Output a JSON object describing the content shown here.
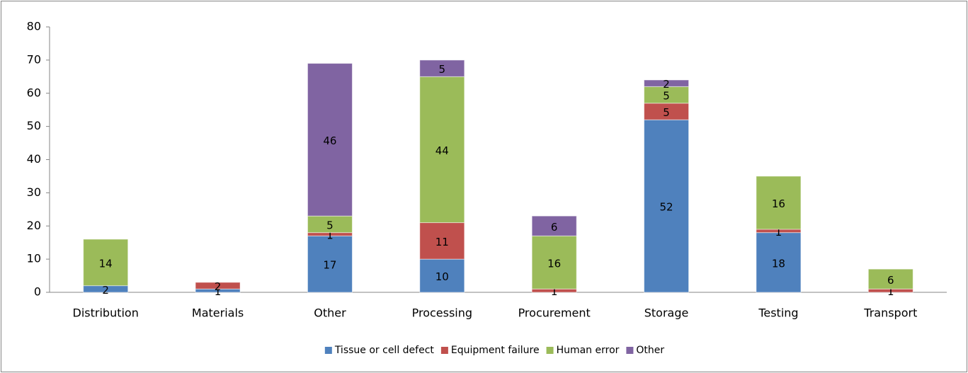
{
  "chart_data": {
    "type": "bar",
    "stacked": true,
    "categories": [
      "Distribution",
      "Materials",
      "Other",
      "Processing",
      "Procurement",
      "Storage",
      "Testing",
      "Transport"
    ],
    "series": [
      {
        "name": "Tissue or cell defect",
        "color": "#4f81bd",
        "values": [
          2,
          1,
          17,
          10,
          null,
          52,
          18,
          null
        ]
      },
      {
        "name": "Equipment failure",
        "color": "#c0504d",
        "values": [
          null,
          2,
          1,
          11,
          1,
          5,
          1,
          1
        ]
      },
      {
        "name": "Human error",
        "color": "#9bbb59",
        "values": [
          14,
          null,
          5,
          44,
          16,
          5,
          16,
          6
        ]
      },
      {
        "name": "Other",
        "color": "#8064a2",
        "values": [
          null,
          null,
          46,
          5,
          6,
          2,
          null,
          null
        ]
      }
    ],
    "ylim": [
      0,
      80
    ],
    "yticks": [
      0,
      10,
      20,
      30,
      40,
      50,
      60,
      70,
      80
    ],
    "grid": false,
    "legend": "bottom"
  }
}
